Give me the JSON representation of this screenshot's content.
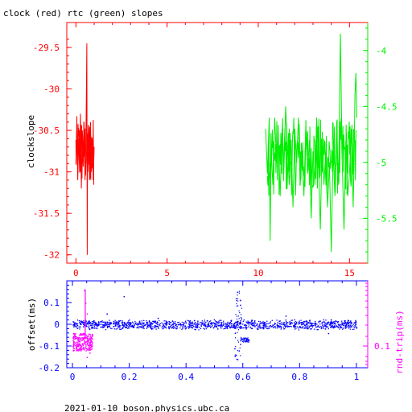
{
  "chart_data": [
    {
      "type": "line",
      "title": "clock (red) rtc (green) slopes",
      "xlabel": "",
      "ylabel": "clockslope",
      "x_ticks": [
        "0",
        "5",
        "10",
        "15"
      ],
      "xlim": [
        -0.5,
        16.0
      ],
      "ylim_left": [
        -32.1,
        -29.2
      ],
      "y_ticks_left": [
        "-29.5",
        "-30",
        "-30.5",
        "-31",
        "-31.5",
        "-32"
      ],
      "ylim_right": [
        -5.9,
        -3.75
      ],
      "y_ticks_right": [
        "-4",
        "-4.5",
        "-5",
        "-5.5"
      ],
      "grid": false,
      "colors": {
        "clock": "#ff0000",
        "rtc": "#00ee00",
        "frame": "#ff0000",
        "right_axis": "#00ee00"
      },
      "series": [
        {
          "color": "#ff0000",
          "axis": "left",
          "x": [
            0.0,
            0.05,
            0.1,
            0.15,
            0.2,
            0.25,
            0.3,
            0.35,
            0.4,
            0.45,
            0.5,
            0.55,
            0.6,
            0.62,
            0.64,
            0.66,
            0.7,
            0.75,
            0.8,
            0.85,
            0.9,
            0.95,
            1.0
          ],
          "y": [
            -30.9,
            -30.4,
            -31.1,
            -30.6,
            -31.0,
            -30.3,
            -31.2,
            -30.5,
            -30.8,
            -30.4,
            -31.1,
            -30.6,
            -29.45,
            -32.0,
            -30.7,
            -31.0,
            -30.5,
            -31.1,
            -30.4,
            -31.0,
            -30.6,
            -31.1,
            -30.7
          ]
        },
        {
          "color": "#00ee00",
          "axis": "right",
          "x": [
            10.4,
            10.5,
            10.6,
            10.65,
            10.7,
            10.8,
            10.9,
            11.0,
            11.1,
            11.2,
            11.3,
            11.4,
            11.5,
            11.6,
            11.7,
            11.8,
            11.9,
            12.0,
            12.1,
            12.2,
            12.3,
            12.4,
            12.5,
            12.6,
            12.7,
            12.8,
            12.9,
            13.0,
            13.1,
            13.2,
            13.3,
            13.4,
            13.5,
            13.6,
            13.7,
            13.8,
            13.9,
            14.0,
            14.1,
            14.2,
            14.3,
            14.4,
            14.5,
            14.6,
            14.7,
            14.8,
            14.9,
            15.0,
            15.1,
            15.2,
            15.25,
            15.3,
            15.35,
            15.4
          ],
          "y": [
            -4.7,
            -5.1,
            -4.6,
            -5.7,
            -4.9,
            -5.2,
            -4.6,
            -5.0,
            -4.8,
            -5.3,
            -4.7,
            -5.1,
            -4.5,
            -4.9,
            -5.2,
            -4.8,
            -5.4,
            -4.7,
            -5.0,
            -4.6,
            -5.2,
            -4.9,
            -5.3,
            -4.7,
            -5.1,
            -4.8,
            -5.5,
            -4.9,
            -5.2,
            -4.6,
            -5.0,
            -5.6,
            -4.8,
            -5.2,
            -4.9,
            -5.4,
            -5.0,
            -5.8,
            -4.9,
            -5.3,
            -4.7,
            -5.2,
            -3.85,
            -5.0,
            -5.6,
            -4.8,
            -5.3,
            -5.1,
            -4.7,
            -5.4,
            -5.0,
            -4.4,
            -4.2,
            -4.6
          ]
        }
      ]
    },
    {
      "type": "scatter",
      "xlabel": "",
      "ylabel": "offset(ms)",
      "ylabel_right": "rnd-trip(ms)",
      "x_ticks": [
        "0",
        "0.2",
        "0.4",
        "0.6",
        "0.8",
        "1"
      ],
      "xlim": [
        -0.02,
        1.04
      ],
      "ylim": [
        -0.2,
        0.2
      ],
      "y_ticks_left": [
        "0.1",
        "0",
        "-0.1",
        "-0.2"
      ],
      "y_ticks_right": [
        "0.1"
      ],
      "grid": false,
      "colors": {
        "offset": "#0000ff",
        "rndtrip": "#ff00ff",
        "frame": "#0000ff",
        "right_axis": "#ff00ff"
      },
      "series": [
        {
          "color": "#0000ff",
          "band": {
            "x": [
              0.0,
              1.0
            ],
            "y_center": 0.0,
            "y_spread": 0.025
          },
          "x": [
            0.57,
            0.575,
            0.58,
            0.585,
            0.59,
            0.58,
            0.575,
            0.59,
            0.6,
            0.61,
            0.62,
            0.12,
            0.18,
            0.75,
            0.3,
            0.9
          ],
          "y": [
            -0.11,
            -0.14,
            -0.16,
            -0.12,
            -0.09,
            0.15,
            0.12,
            0.09,
            -0.07,
            -0.07,
            -0.07,
            0.05,
            0.13,
            0.04,
            0.03,
            -0.04
          ]
        },
        {
          "color": "#ff00ff",
          "band": {
            "x": [
              0.0,
              0.07
            ],
            "y_center": -0.08,
            "y_spread": 0.04
          },
          "x": [
            0.04,
            0.045,
            0.05,
            0.05,
            0.06
          ],
          "y": [
            0.16,
            0.1,
            0.05,
            -0.15,
            -0.13
          ]
        }
      ]
    }
  ],
  "footer": {
    "text": "2021-01-10 boson.physics.ubc.ca"
  }
}
